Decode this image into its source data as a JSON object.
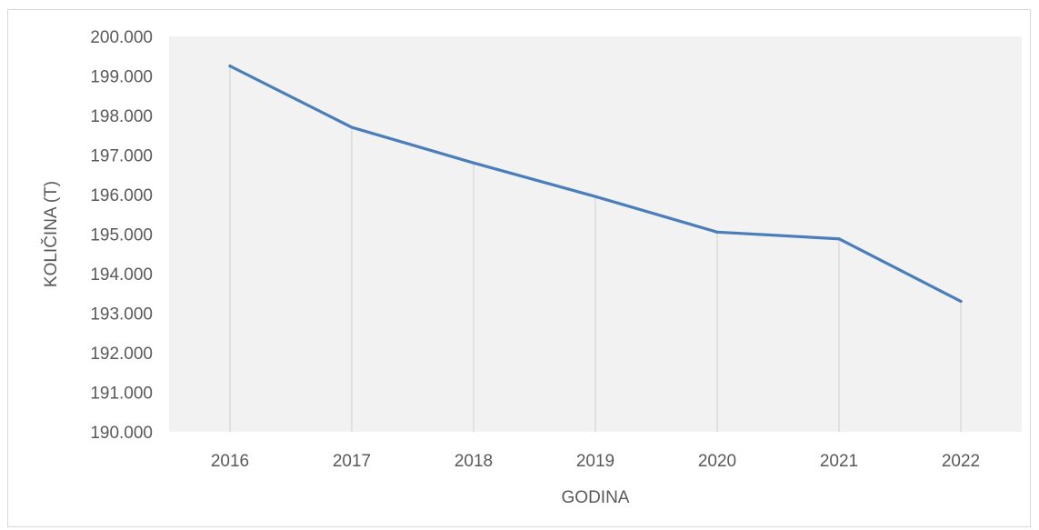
{
  "chart_data": {
    "type": "line",
    "title": "",
    "xlabel": "GODINA",
    "ylabel": "KOLIČINA (T)",
    "categories": [
      "2016",
      "2017",
      "2018",
      "2019",
      "2020",
      "2021",
      "2022"
    ],
    "series": [
      {
        "values": [
          199250,
          197700,
          196800,
          195950,
          195050,
          194880,
          193300
        ],
        "color": "#4a7ebb"
      }
    ],
    "ylim": [
      190000,
      200000
    ],
    "y_ticks": [
      190000,
      191000,
      192000,
      193000,
      194000,
      195000,
      196000,
      197000,
      198000,
      199000,
      200000
    ],
    "y_tick_labels": [
      "190.000",
      "191.000",
      "192.000",
      "193.000",
      "194.000",
      "195.000",
      "196.000",
      "197.000",
      "198.000",
      "199.000",
      "200.000"
    ],
    "plot_background": "#f2f2f2",
    "drop_lines": true,
    "legend": "none"
  }
}
